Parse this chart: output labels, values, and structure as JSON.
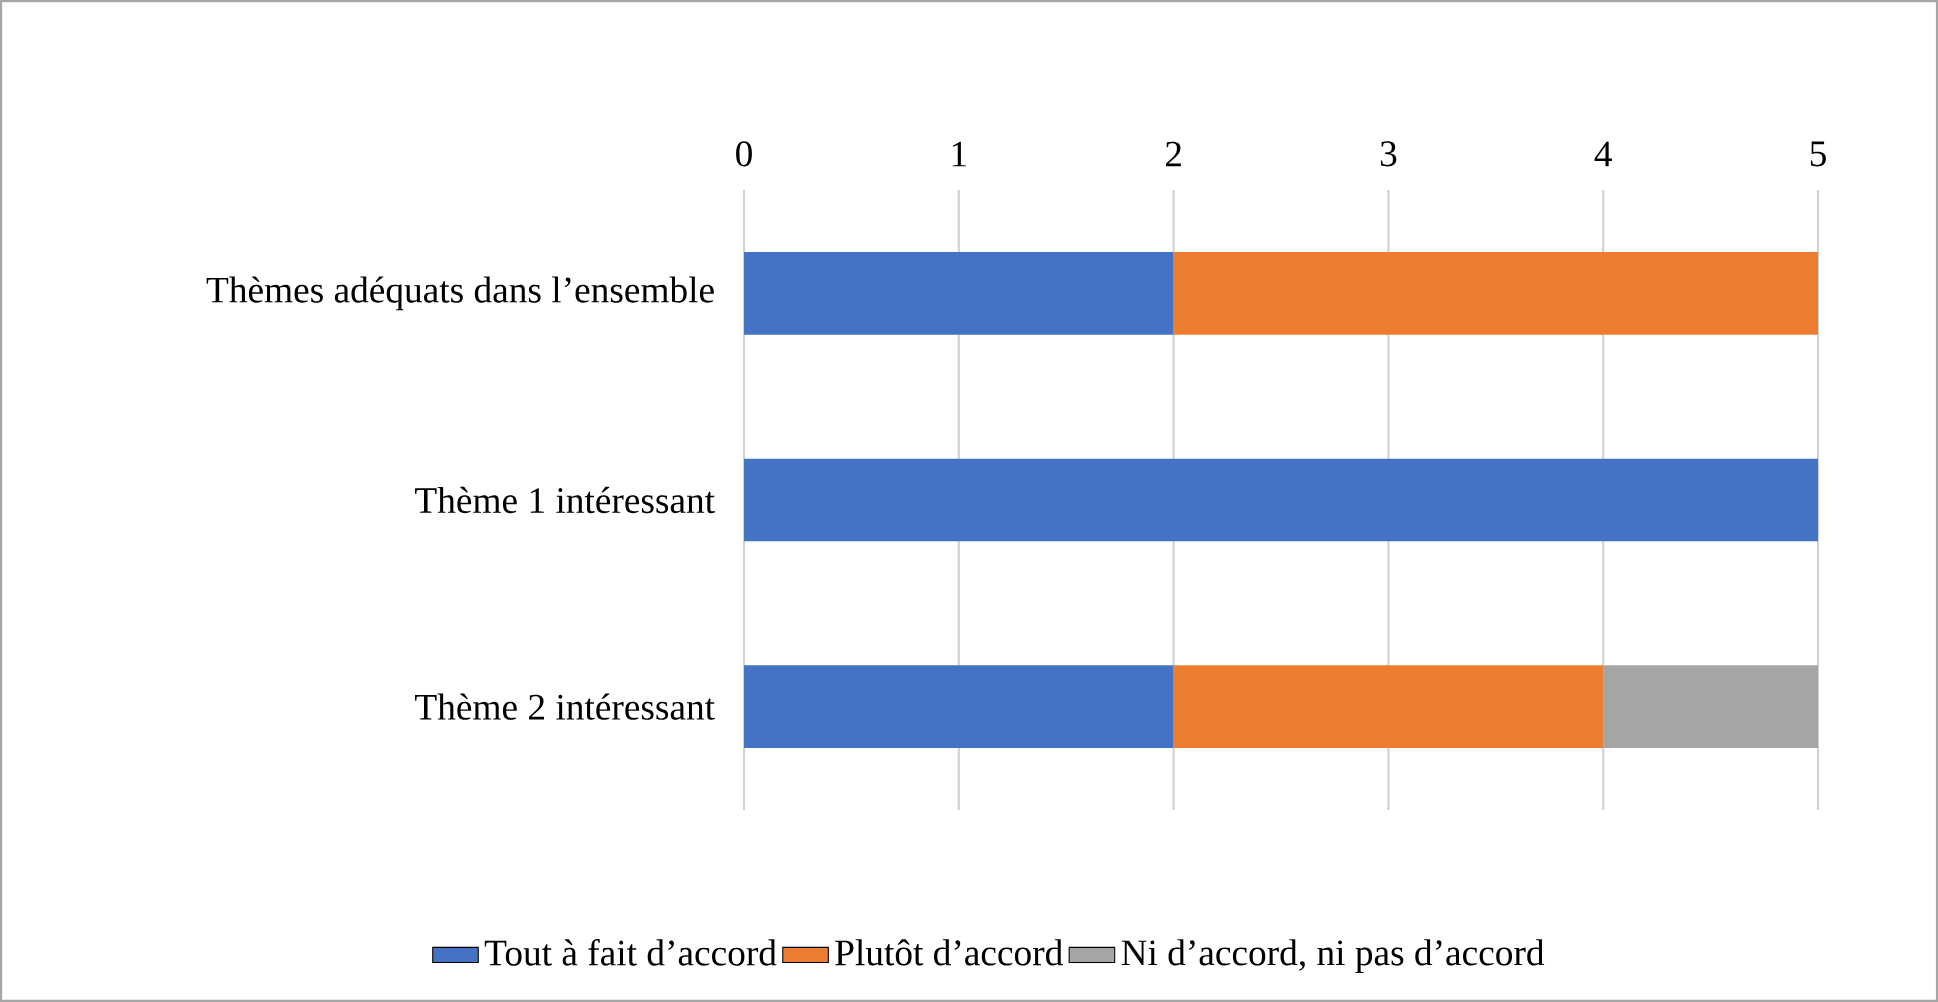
{
  "chart_data": {
    "type": "bar",
    "orientation": "horizontal",
    "stacked": true,
    "categories": [
      "Thèmes adéquats dans l’ensemble",
      "Thème 1 intéressant",
      "Thème 2 intéressant"
    ],
    "series": [
      {
        "name": "Tout à fait d’accord",
        "color": "#4472c4",
        "values": [
          2,
          5,
          2
        ]
      },
      {
        "name": "Plutôt d’accord",
        "color": "#ed7d31",
        "values": [
          3,
          null,
          2
        ]
      },
      {
        "name": "Ni d’accord, ni pas d’accord",
        "color": "#a5a5a5",
        "values": [
          null,
          null,
          1
        ]
      }
    ],
    "xlim": [
      0,
      5
    ],
    "xticks": [
      0,
      1,
      2,
      3,
      4,
      5
    ],
    "grid": "x",
    "legend": "bottom"
  }
}
